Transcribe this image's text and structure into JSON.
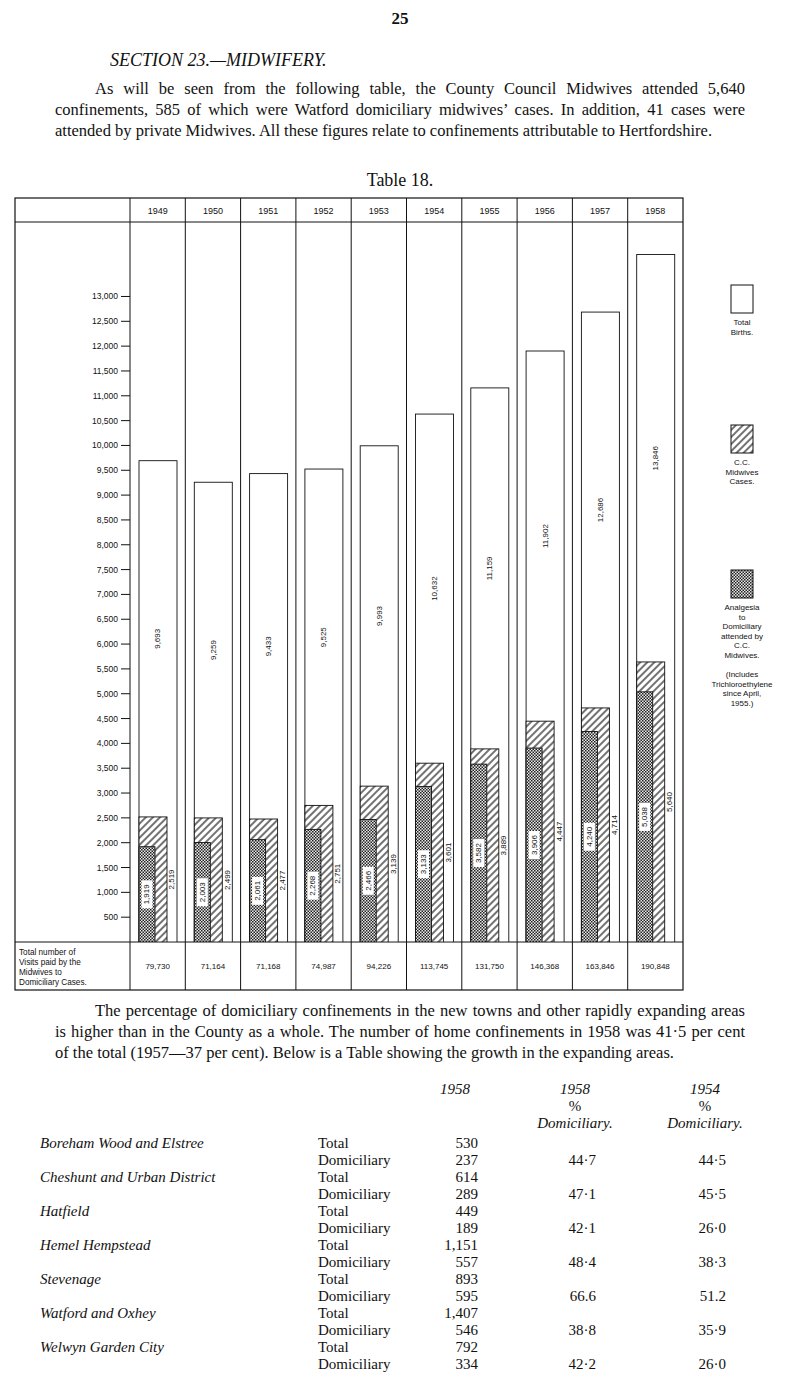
{
  "page_number": "25",
  "section_title": "SECTION 23.—MIDWIFERY.",
  "paragraphs": [
    "As will be seen from the following table, the County Council Midwives attended 5,640 confinements, 585 of which were Watford domiciliary midwives’ cases. In addition, 41 cases were attended by private Midwives. All these figures relate to confinements attributable to Hertfordshire.",
    "The percentage of domiciliary confinements in the new towns and other rapidly expanding areas is higher than in the County as a whole. The number of home confinements in 1958 was 41·5 per cent of the total (1957—37 per cent). Below is a Table showing the growth in the expanding areas."
  ],
  "table_caption": "Table 18.",
  "chart_data": {
    "type": "bar",
    "categories": [
      "1949",
      "1950",
      "1951",
      "1952",
      "1953",
      "1954",
      "1955",
      "1956",
      "1957",
      "1958"
    ],
    "series": [
      {
        "name": "Total Births.",
        "color": "#ffffff",
        "values": [
          9693,
          9259,
          9433,
          9525,
          9993,
          10632,
          11159,
          11902,
          12686,
          13846
        ],
        "value_labels": [
          "9,693",
          "9,259",
          "9,433",
          "9,525",
          "9,993",
          "10,632",
          "11,159",
          "11,902",
          "12,686",
          "13,846"
        ]
      },
      {
        "name": "C.C. Midwives Cases.",
        "color": "#444444",
        "values": [
          2519,
          2499,
          2477,
          2751,
          3139,
          3601,
          3889,
          4447,
          4714,
          5640
        ],
        "value_labels": [
          "2,519",
          "2,499",
          "2,477",
          "2,751",
          "3,139",
          "3,601",
          "3,889",
          "4,447",
          "4,714",
          "5,640"
        ]
      },
      {
        "name": "Analgesia to Domiciliary attended by C.C. Midwives.",
        "color": "#222222",
        "values": [
          1919,
          2003,
          2061,
          2268,
          2466,
          3133,
          3582,
          3906,
          4240,
          5038
        ],
        "value_labels": [
          "1,919",
          "2,003",
          "2,061",
          "2,268",
          "2,466",
          "3,133",
          "3,582",
          "3,906",
          "4,240",
          "5,038"
        ]
      }
    ],
    "legend_note": "(Includes Trichloroethylene since April, 1955.)",
    "legend": "right",
    "data_labels": true,
    "ylim": [
      0,
      14500
    ],
    "yticks": [
      500,
      {
        "value": 1000,
        "label": "1,000"
      },
      {
        "value": 1500,
        "label": "1,500"
      },
      {
        "value": 2000,
        "label": "2,000"
      },
      {
        "value": 2500,
        "label": "2,500"
      },
      {
        "value": 3000,
        "label": "3,000"
      },
      {
        "value": 3500,
        "label": "3,500"
      },
      {
        "value": 4000,
        "label": "4,000"
      },
      {
        "value": 4500,
        "label": "4,500"
      },
      {
        "value": 5000,
        "label": "5,000"
      },
      {
        "value": 5500,
        "label": "5,500"
      },
      {
        "value": 6000,
        "label": "6,000"
      },
      {
        "value": 6500,
        "label": "6,500"
      },
      {
        "value": 7000,
        "label": "7,000"
      },
      {
        "value": 7500,
        "label": "7,500"
      },
      {
        "value": 8000,
        "label": "8,000"
      },
      {
        "value": 8500,
        "label": "8,500"
      },
      {
        "value": 9000,
        "label": "9,000"
      },
      {
        "value": 9500,
        "label": "9,500"
      },
      {
        "value": 10000,
        "label": "10,000"
      },
      {
        "value": 10500,
        "label": "10,500"
      },
      {
        "value": 11000,
        "label": "11,000"
      },
      {
        "value": 11500,
        "label": "11,500"
      },
      {
        "value": 12000,
        "label": "12,000"
      },
      {
        "value": 12500,
        "label": "12,500"
      },
      {
        "value": 13000,
        "label": "13,000"
      }
    ],
    "visits": {
      "label": "Total number of Visits paid by the Midwives to Domiciliary Cases.",
      "values": [
        "79,730",
        "71,164",
        "71,168",
        "74,987",
        "94,226",
        "113,745",
        "131,750",
        "146,368",
        "163,846",
        "190,848"
      ]
    }
  },
  "growth_table": {
    "headers": [
      {
        "year": "1958"
      },
      {
        "year": "1958",
        "unit": "%",
        "label": "Domiciliary."
      },
      {
        "year": "1954",
        "unit": "%",
        "label": "Domiciliary."
      }
    ],
    "rows": [
      {
        "area": "Boreham Wood and Elstree",
        "total_label": "Total",
        "total": "530",
        "domiciliary_label": "Domiciliary",
        "domiciliary": "237",
        "pct_1958": "44·7",
        "pct_1954": "44·5"
      },
      {
        "area": "Cheshunt and Urban District",
        "total_label": "Total",
        "total": "614",
        "domiciliary_label": "Domiciliary",
        "domiciliary": "289",
        "pct_1958": "47·1",
        "pct_1954": "45·5"
      },
      {
        "area": "Hatfield",
        "total_label": "Total",
        "total": "449",
        "domiciliary_label": "Domiciliary",
        "domiciliary": "189",
        "pct_1958": "42·1",
        "pct_1954": "26·0"
      },
      {
        "area": "Hemel Hempstead",
        "total_label": "Total",
        "total": "1,151",
        "domiciliary_label": "Domiciliary",
        "domiciliary": "557",
        "pct_1958": "48·4",
        "pct_1954": "38·3"
      },
      {
        "area": "Stevenage",
        "total_label": "Total",
        "total": "893",
        "domiciliary_label": "Domiciliary",
        "domiciliary": "595",
        "pct_1958": "66.6",
        "pct_1954": "51.2"
      },
      {
        "area": "Watford and Oxhey",
        "total_label": "Total",
        "total": "1,407",
        "domiciliary_label": "Domiciliary",
        "domiciliary": "546",
        "pct_1958": "38·8",
        "pct_1954": "35·9"
      },
      {
        "area": "Welwyn Garden City",
        "total_label": "Total",
        "total": "792",
        "domiciliary_label": "Domiciliary",
        "domiciliary": "334",
        "pct_1958": "42·2",
        "pct_1954": "26·0"
      }
    ]
  }
}
